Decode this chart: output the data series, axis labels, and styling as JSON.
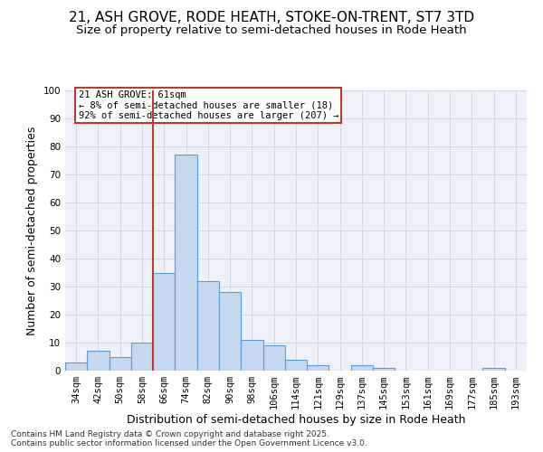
{
  "title1": "21, ASH GROVE, RODE HEATH, STOKE-ON-TRENT, ST7 3TD",
  "title2": "Size of property relative to semi-detached houses in Rode Heath",
  "xlabel": "Distribution of semi-detached houses by size in Rode Heath",
  "ylabel": "Number of semi-detached properties",
  "categories": [
    "34sqm",
    "42sqm",
    "50sqm",
    "58sqm",
    "66sqm",
    "74sqm",
    "82sqm",
    "90sqm",
    "98sqm",
    "106sqm",
    "114sqm",
    "121sqm",
    "129sqm",
    "137sqm",
    "145sqm",
    "153sqm",
    "161sqm",
    "169sqm",
    "177sqm",
    "185sqm",
    "193sqm"
  ],
  "values": [
    3,
    7,
    5,
    10,
    35,
    77,
    32,
    28,
    11,
    9,
    4,
    2,
    0,
    2,
    1,
    0,
    0,
    0,
    0,
    1,
    0
  ],
  "bar_color": "#c5d8f0",
  "bar_edge_color": "#5b9bd5",
  "vline_x": 3.5,
  "vline_color": "#c0392b",
  "annotation_text": "21 ASH GROVE: 61sqm\n← 8% of semi-detached houses are smaller (18)\n92% of semi-detached houses are larger (207) →",
  "annotation_box_color": "#c0392b",
  "ylim": [
    0,
    100
  ],
  "yticks": [
    0,
    10,
    20,
    30,
    40,
    50,
    60,
    70,
    80,
    90,
    100
  ],
  "grid_color": "#d0d8e8",
  "bg_color": "#eef2f8",
  "footer": "Contains HM Land Registry data © Crown copyright and database right 2025.\nContains public sector information licensed under the Open Government Licence v3.0.",
  "title_fontsize": 11,
  "subtitle_fontsize": 9.5,
  "axis_label_fontsize": 9,
  "tick_fontsize": 7.5,
  "annotation_fontsize": 7.5,
  "footer_fontsize": 6.5
}
